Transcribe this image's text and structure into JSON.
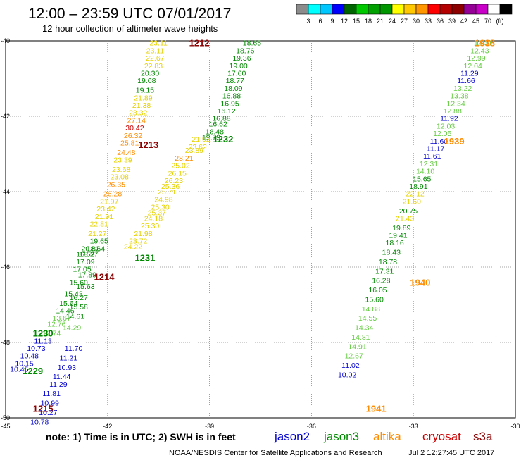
{
  "header": {
    "title": "12:00 – 23:59 UTC 07/01/2017",
    "subtitle": "12 hour collection of altimeter wave heights"
  },
  "colorbar": {
    "colors": [
      "#8c8c8c",
      "#00ffff",
      "#00c8ff",
      "#0000ff",
      "#006400",
      "#00c800",
      "#00a000",
      "#009600",
      "#ffff00",
      "#ffc800",
      "#ff9600",
      "#ff0000",
      "#b40000",
      "#8c0000",
      "#960096",
      "#c800c8",
      "#ffffff",
      "#000000"
    ],
    "labels": [
      "3",
      "6",
      "9",
      "12",
      "15",
      "18",
      "21",
      "24",
      "27",
      "30",
      "33",
      "36",
      "39",
      "42",
      "45",
      "70",
      "(ft)"
    ]
  },
  "axes": {
    "lon_labels": [
      "-45",
      "-42",
      "-39",
      "-36",
      "-33",
      "-30"
    ],
    "lat_labels": [
      "-40",
      "-42",
      "-44",
      "-46",
      "-48",
      "-50"
    ]
  },
  "colors": {
    "jason2": "#0000cc",
    "jason3": "#008800",
    "altika": "#ff8c00",
    "cryosat": "#cc0000",
    "s3a": "#8b0000",
    "yellow": "#e6d200",
    "lightgreen": "#66cc44"
  },
  "tracks": [
    {
      "sat": "s3a",
      "time": "1212",
      "lon": -39.3,
      "lat": -40.05
    },
    {
      "sat": "s3a",
      "time": "1213",
      "lon": -40.8,
      "lat": -42.75
    },
    {
      "sat": "s3a",
      "time": "1214",
      "lon": -42.1,
      "lat": -46.25
    },
    {
      "sat": "s3a",
      "time": "1215",
      "lon": -43.9,
      "lat": -49.75
    },
    {
      "sat": "jason3",
      "time": "1232",
      "lon": -38.6,
      "lat": -42.6
    },
    {
      "sat": "jason3",
      "time": "1231",
      "lon": -40.9,
      "lat": -45.75
    },
    {
      "sat": "jason3",
      "time": "1230",
      "lon": -43.9,
      "lat": -47.75
    },
    {
      "sat": "jason3",
      "time": "1229",
      "lon": -44.2,
      "lat": -48.75
    },
    {
      "sat": "altika",
      "time": "1938",
      "lon": -30.9,
      "lat": -40.05
    },
    {
      "sat": "altika",
      "time": "1939",
      "lon": -31.8,
      "lat": -42.65
    },
    {
      "sat": "altika",
      "time": "1940",
      "lon": -32.8,
      "lat": -46.4
    },
    {
      "sat": "altika",
      "time": "1941",
      "lon": -34.1,
      "lat": -49.75
    }
  ],
  "points": [
    {
      "v": "18.65",
      "lon": -37.75,
      "lat": -40.05,
      "c": "jason3"
    },
    {
      "v": "18.76",
      "lon": -37.95,
      "lat": -40.25,
      "c": "jason3"
    },
    {
      "v": "19.36",
      "lon": -38.05,
      "lat": -40.45,
      "c": "jason3"
    },
    {
      "v": "19.00",
      "lon": -38.15,
      "lat": -40.65,
      "c": "jason3"
    },
    {
      "v": "17.60",
      "lon": -38.2,
      "lat": -40.85,
      "c": "jason3"
    },
    {
      "v": "18.77",
      "lon": -38.25,
      "lat": -41.05,
      "c": "jason3"
    },
    {
      "v": "18.09",
      "lon": -38.3,
      "lat": -41.25,
      "c": "jason3"
    },
    {
      "v": "16.88",
      "lon": -38.35,
      "lat": -41.45,
      "c": "jason3"
    },
    {
      "v": "16.95",
      "lon": -38.4,
      "lat": -41.65,
      "c": "jason3"
    },
    {
      "v": "16.12",
      "lon": -38.5,
      "lat": -41.85,
      "c": "jason3"
    },
    {
      "v": "16.88",
      "lon": -38.65,
      "lat": -42.05,
      "c": "jason3"
    },
    {
      "v": "16.62",
      "lon": -38.75,
      "lat": -42.2,
      "c": "jason3"
    },
    {
      "v": "18.48",
      "lon": -38.85,
      "lat": -42.4,
      "c": "jason3"
    },
    {
      "v": "19.79",
      "lon": -38.95,
      "lat": -42.55,
      "c": "jason3"
    },
    {
      "v": "21.92",
      "lon": -39.25,
      "lat": -42.6,
      "c": "yellow"
    },
    {
      "v": "23.62",
      "lon": -39.35,
      "lat": -42.8,
      "c": "yellow"
    },
    {
      "v": "23.89",
      "lon": -39.45,
      "lat": -42.9,
      "c": "yellow"
    },
    {
      "v": "28.21",
      "lon": -39.75,
      "lat": -43.1,
      "c": "altika"
    },
    {
      "v": "25.02",
      "lon": -39.85,
      "lat": -43.3,
      "c": "yellow"
    },
    {
      "v": "26.15",
      "lon": -39.95,
      "lat": -43.5,
      "c": "yellow"
    },
    {
      "v": "26.23",
      "lon": -40.05,
      "lat": -43.7,
      "c": "yellow"
    },
    {
      "v": "25.36",
      "lon": -40.15,
      "lat": -43.85,
      "c": "yellow"
    },
    {
      "v": "25.71",
      "lon": -40.25,
      "lat": -44.0,
      "c": "yellow"
    },
    {
      "v": "24.98",
      "lon": -40.35,
      "lat": -44.2,
      "c": "yellow"
    },
    {
      "v": "25.30",
      "lon": -40.45,
      "lat": -44.4,
      "c": "yellow"
    },
    {
      "v": "25.37",
      "lon": -40.55,
      "lat": -44.55,
      "c": "yellow"
    },
    {
      "v": "24.18",
      "lon": -40.65,
      "lat": -44.7,
      "c": "yellow"
    },
    {
      "v": "25.30",
      "lon": -40.75,
      "lat": -44.9,
      "c": "yellow"
    },
    {
      "v": "21.98",
      "lon": -40.95,
      "lat": -45.1,
      "c": "yellow"
    },
    {
      "v": "23.72",
      "lon": -41.1,
      "lat": -45.3,
      "c": "yellow"
    },
    {
      "v": "24.22",
      "lon": -41.25,
      "lat": -45.45,
      "c": "yellow"
    },
    {
      "v": "23.11",
      "lon": -40.5,
      "lat": -40.05,
      "c": "yellow"
    },
    {
      "v": "23.11",
      "lon": -40.6,
      "lat": -40.25,
      "c": "yellow"
    },
    {
      "v": "22.67",
      "lon": -40.6,
      "lat": -40.45,
      "c": "yellow"
    },
    {
      "v": "22.83",
      "lon": -40.65,
      "lat": -40.65,
      "c": "yellow"
    },
    {
      "v": "20.30",
      "lon": -40.75,
      "lat": -40.85,
      "c": "jason3"
    },
    {
      "v": "19.08",
      "lon": -40.85,
      "lat": -41.05,
      "c": "jason3"
    },
    {
      "v": "19.15",
      "lon": -40.9,
      "lat": -41.3,
      "c": "jason3"
    },
    {
      "v": "21.89",
      "lon": -40.95,
      "lat": -41.5,
      "c": "yellow"
    },
    {
      "v": "21.38",
      "lon": -41.0,
      "lat": -41.7,
      "c": "yellow"
    },
    {
      "v": "23.32",
      "lon": -41.1,
      "lat": -41.9,
      "c": "yellow"
    },
    {
      "v": "27.14",
      "lon": -41.15,
      "lat": -42.1,
      "c": "altika"
    },
    {
      "v": "30.42",
      "lon": -41.2,
      "lat": -42.3,
      "c": "cryosat"
    },
    {
      "v": "26.32",
      "lon": -41.25,
      "lat": -42.5,
      "c": "altika"
    },
    {
      "v": "25.81",
      "lon": -41.35,
      "lat": -42.7,
      "c": "altika"
    },
    {
      "v": "24.48",
      "lon": -41.45,
      "lat": -42.95,
      "c": "altika"
    },
    {
      "v": "23.39",
      "lon": -41.55,
      "lat": -43.15,
      "c": "yellow"
    },
    {
      "v": "23.68",
      "lon": -41.6,
      "lat": -43.4,
      "c": "yellow"
    },
    {
      "v": "23.08",
      "lon": -41.65,
      "lat": -43.6,
      "c": "yellow"
    },
    {
      "v": "26.35",
      "lon": -41.75,
      "lat": -43.8,
      "c": "altika"
    },
    {
      "v": "26.28",
      "lon": -41.85,
      "lat": -44.05,
      "c": "altika"
    },
    {
      "v": "21.97",
      "lon": -41.95,
      "lat": -44.25,
      "c": "yellow"
    },
    {
      "v": "23.42",
      "lon": -42.05,
      "lat": -44.45,
      "c": "yellow"
    },
    {
      "v": "21.91",
      "lon": -42.1,
      "lat": -44.65,
      "c": "yellow"
    },
    {
      "v": "22.81",
      "lon": -42.25,
      "lat": -44.85,
      "c": "yellow"
    },
    {
      "v": "21.27",
      "lon": -42.3,
      "lat": -45.1,
      "c": "yellow"
    },
    {
      "v": "19.65",
      "lon": -42.25,
      "lat": -45.3,
      "c": "jason3"
    },
    {
      "v": "20.82",
      "lon": -42.5,
      "lat": -45.5,
      "c": "jason3"
    },
    {
      "v": "18.64",
      "lon": -42.35,
      "lat": -45.5,
      "c": "jason3"
    },
    {
      "v": "18.27",
      "lon": -42.55,
      "lat": -45.65,
      "c": "jason3"
    },
    {
      "v": "16.52",
      "lon": -42.65,
      "lat": -45.65,
      "c": "jason3"
    },
    {
      "v": "17.09",
      "lon": -42.65,
      "lat": -45.85,
      "c": "jason3"
    },
    {
      "v": "17.05",
      "lon": -42.75,
      "lat": -46.05,
      "c": "jason3"
    },
    {
      "v": "17.89",
      "lon": -42.6,
      "lat": -46.2,
      "c": "jason3"
    },
    {
      "v": "15.60",
      "lon": -42.85,
      "lat": -46.4,
      "c": "jason3"
    },
    {
      "v": "15.63",
      "lon": -42.65,
      "lat": -46.5,
      "c": "jason3"
    },
    {
      "v": "15.43",
      "lon": -43.0,
      "lat": -46.7,
      "c": "jason3"
    },
    {
      "v": "16.27",
      "lon": -42.85,
      "lat": -46.8,
      "c": "jason3"
    },
    {
      "v": "15.64",
      "lon": -43.15,
      "lat": -46.95,
      "c": "jason3"
    },
    {
      "v": "15.58",
      "lon": -42.85,
      "lat": -47.05,
      "c": "jason3"
    },
    {
      "v": "14.46",
      "lon": -43.25,
      "lat": -47.15,
      "c": "jason3"
    },
    {
      "v": "14.61",
      "lon": -42.95,
      "lat": -47.3,
      "c": "jason3"
    },
    {
      "v": "13.67",
      "lon": -43.35,
      "lat": -47.35,
      "c": "lightgreen"
    },
    {
      "v": "12.76",
      "lon": -43.5,
      "lat": -47.5,
      "c": "lightgreen"
    },
    {
      "v": "14.29",
      "lon": -43.05,
      "lat": -47.6,
      "c": "lightgreen"
    },
    {
      "v": "12.74",
      "lon": -43.65,
      "lat": -47.75,
      "c": "lightgreen"
    },
    {
      "v": "11.13",
      "lon": -43.9,
      "lat": -47.95,
      "c": "jason2"
    },
    {
      "v": "11.70",
      "lon": -43.0,
      "lat": -48.15,
      "c": "jason2"
    },
    {
      "v": "10.73",
      "lon": -44.1,
      "lat": -48.15,
      "c": "jason2"
    },
    {
      "v": "10.48",
      "lon": -44.3,
      "lat": -48.35,
      "c": "jason2"
    },
    {
      "v": "11.21",
      "lon": -43.15,
      "lat": -48.4,
      "c": "jason2"
    },
    {
      "v": "10.15",
      "lon": -44.45,
      "lat": -48.55,
      "c": "jason2"
    },
    {
      "v": "10.93",
      "lon": -43.2,
      "lat": -48.65,
      "c": "jason2"
    },
    {
      "v": "10.45",
      "lon": -44.6,
      "lat": -48.7,
      "c": "jason2"
    },
    {
      "v": "11.44",
      "lon": -43.35,
      "lat": -48.9,
      "c": "jason2"
    },
    {
      "v": "11.29",
      "lon": -43.45,
      "lat": -49.1,
      "c": "jason2"
    },
    {
      "v": "11.81",
      "lon": -43.65,
      "lat": -49.35,
      "c": "jason2"
    },
    {
      "v": "10.99",
      "lon": -43.7,
      "lat": -49.6,
      "c": "jason2"
    },
    {
      "v": "10.27",
      "lon": -43.75,
      "lat": -49.85,
      "c": "jason2"
    },
    {
      "v": "10.78",
      "lon": -44.0,
      "lat": -50.1,
      "c": "jason2"
    },
    {
      "v": "12.31",
      "lon": -30.95,
      "lat": -40.05,
      "c": "lightgreen"
    },
    {
      "v": "12.43",
      "lon": -31.05,
      "lat": -40.25,
      "c": "lightgreen"
    },
    {
      "v": "12.99",
      "lon": -31.15,
      "lat": -40.45,
      "c": "lightgreen"
    },
    {
      "v": "12.04",
      "lon": -31.25,
      "lat": -40.65,
      "c": "lightgreen"
    },
    {
      "v": "11.29",
      "lon": -31.35,
      "lat": -40.85,
      "c": "jason2"
    },
    {
      "v": "11.66",
      "lon": -31.45,
      "lat": -41.05,
      "c": "jason2"
    },
    {
      "v": "13.22",
      "lon": -31.55,
      "lat": -41.25,
      "c": "lightgreen"
    },
    {
      "v": "13.38",
      "lon": -31.65,
      "lat": -41.45,
      "c": "lightgreen"
    },
    {
      "v": "12.34",
      "lon": -31.75,
      "lat": -41.65,
      "c": "lightgreen"
    },
    {
      "v": "12.88",
      "lon": -31.85,
      "lat": -41.85,
      "c": "lightgreen"
    },
    {
      "v": "11.92",
      "lon": -31.95,
      "lat": -42.05,
      "c": "jason2"
    },
    {
      "v": "12.03",
      "lon": -32.05,
      "lat": -42.25,
      "c": "lightgreen"
    },
    {
      "v": "12.05",
      "lon": -32.15,
      "lat": -42.45,
      "c": "lightgreen"
    },
    {
      "v": "11.60",
      "lon": -32.25,
      "lat": -42.65,
      "c": "jason2"
    },
    {
      "v": "11.17",
      "lon": -32.35,
      "lat": -42.85,
      "c": "jason2"
    },
    {
      "v": "11.61",
      "lon": -32.45,
      "lat": -43.05,
      "c": "jason2"
    },
    {
      "v": "12.31",
      "lon": -32.55,
      "lat": -43.25,
      "c": "lightgreen"
    },
    {
      "v": "14.10",
      "lon": -32.65,
      "lat": -43.45,
      "c": "lightgreen"
    },
    {
      "v": "15.65",
      "lon": -32.75,
      "lat": -43.65,
      "c": "jason3"
    },
    {
      "v": "18.91",
      "lon": -32.85,
      "lat": -43.85,
      "c": "jason3"
    },
    {
      "v": "22.12",
      "lon": -32.95,
      "lat": -44.05,
      "c": "yellow"
    },
    {
      "v": "21.60",
      "lon": -33.05,
      "lat": -44.25,
      "c": "yellow"
    },
    {
      "v": "20.75",
      "lon": -33.15,
      "lat": -44.5,
      "c": "jason3"
    },
    {
      "v": "21.43",
      "lon": -33.25,
      "lat": -44.7,
      "c": "yellow"
    },
    {
      "v": "19.89",
      "lon": -33.35,
      "lat": -44.95,
      "c": "jason3"
    },
    {
      "v": "19.41",
      "lon": -33.45,
      "lat": -45.15,
      "c": "jason3"
    },
    {
      "v": "18.16",
      "lon": -33.55,
      "lat": -45.35,
      "c": "jason3"
    },
    {
      "v": "18.43",
      "lon": -33.65,
      "lat": -45.6,
      "c": "jason3"
    },
    {
      "v": "18.78",
      "lon": -33.75,
      "lat": -45.85,
      "c": "jason3"
    },
    {
      "v": "17.31",
      "lon": -33.85,
      "lat": -46.1,
      "c": "jason3"
    },
    {
      "v": "16.28",
      "lon": -33.95,
      "lat": -46.35,
      "c": "jason3"
    },
    {
      "v": "16.05",
      "lon": -34.05,
      "lat": -46.6,
      "c": "jason3"
    },
    {
      "v": "15.60",
      "lon": -34.15,
      "lat": -46.85,
      "c": "jason3"
    },
    {
      "v": "14.88",
      "lon": -34.25,
      "lat": -47.1,
      "c": "lightgreen"
    },
    {
      "v": "14.55",
      "lon": -34.35,
      "lat": -47.35,
      "c": "lightgreen"
    },
    {
      "v": "14.34",
      "lon": -34.45,
      "lat": -47.6,
      "c": "lightgreen"
    },
    {
      "v": "14.81",
      "lon": -34.55,
      "lat": -47.85,
      "c": "lightgreen"
    },
    {
      "v": "14.91",
      "lon": -34.65,
      "lat": -48.1,
      "c": "lightgreen"
    },
    {
      "v": "12.67",
      "lon": -34.75,
      "lat": -48.35,
      "c": "lightgreen"
    },
    {
      "v": "11.02",
      "lon": -34.85,
      "lat": -48.6,
      "c": "jason2"
    },
    {
      "v": "10.02",
      "lon": -34.95,
      "lat": -48.85,
      "c": "jason2"
    }
  ],
  "footer": {
    "note": "note:  1) Time is in UTC;  2) SWH is in feet",
    "legend": [
      {
        "label": "jason2",
        "c": "jason2"
      },
      {
        "label": "jason3",
        "c": "jason3"
      },
      {
        "label": "altika",
        "c": "altika"
      },
      {
        "label": "cryosat",
        "c": "cryosat"
      },
      {
        "label": "s3a",
        "c": "s3a"
      }
    ],
    "credit": "NOAA/NESDIS Center for Satellite Applications and Research",
    "timestamp": "Jul  2 12:27:45 UTC 2017"
  }
}
